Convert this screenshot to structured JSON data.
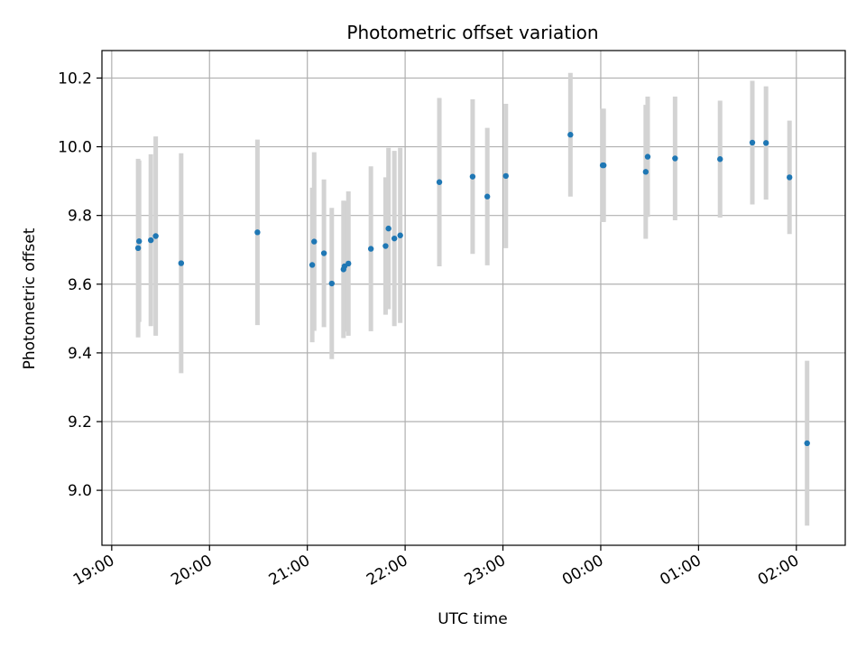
{
  "chart_data": {
    "type": "scatter",
    "title": "Photometric offset variation",
    "xlabel": "UTC time",
    "ylabel": "Photometric offset",
    "x_start_label": "19:00",
    "xlim_hours": [
      -0.1,
      7.5
    ],
    "ylim": [
      8.84,
      10.28
    ],
    "x_ticks": [
      {
        "hour": 0,
        "label": "19:00"
      },
      {
        "hour": 1,
        "label": "20:00"
      },
      {
        "hour": 2,
        "label": "21:00"
      },
      {
        "hour": 3,
        "label": "22:00"
      },
      {
        "hour": 4,
        "label": "23:00"
      },
      {
        "hour": 5,
        "label": "00:00"
      },
      {
        "hour": 6,
        "label": "01:00"
      },
      {
        "hour": 7,
        "label": "02:00"
      }
    ],
    "y_ticks": [
      {
        "value": 9.0,
        "label": "9.0"
      },
      {
        "value": 9.2,
        "label": "9.2"
      },
      {
        "value": 9.4,
        "label": "9.4"
      },
      {
        "value": 9.6,
        "label": "9.6"
      },
      {
        "value": 9.8,
        "label": "9.8"
      },
      {
        "value": 10.0,
        "label": "10.0"
      },
      {
        "value": 10.2,
        "label": "10.2"
      }
    ],
    "grid": true,
    "marker_color": "#1f77b4",
    "errorbar_color": "#d3d3d3",
    "points": [
      {
        "x": 0.27,
        "y": 9.705,
        "err": 0.26
      },
      {
        "x": 0.28,
        "y": 9.725,
        "err": 0.235
      },
      {
        "x": 0.4,
        "y": 9.728,
        "err": 0.25
      },
      {
        "x": 0.45,
        "y": 9.74,
        "err": 0.29
      },
      {
        "x": 0.71,
        "y": 9.661,
        "err": 0.32
      },
      {
        "x": 1.49,
        "y": 9.751,
        "err": 0.27
      },
      {
        "x": 2.05,
        "y": 9.656,
        "err": 0.225
      },
      {
        "x": 2.07,
        "y": 9.724,
        "err": 0.26
      },
      {
        "x": 2.17,
        "y": 9.69,
        "err": 0.215
      },
      {
        "x": 2.25,
        "y": 9.602,
        "err": 0.22
      },
      {
        "x": 2.37,
        "y": 9.643,
        "err": 0.2
      },
      {
        "x": 2.38,
        "y": 9.652,
        "err": 0.19
      },
      {
        "x": 2.42,
        "y": 9.66,
        "err": 0.21
      },
      {
        "x": 2.65,
        "y": 9.703,
        "err": 0.24
      },
      {
        "x": 2.8,
        "y": 9.711,
        "err": 0.2
      },
      {
        "x": 2.83,
        "y": 9.762,
        "err": 0.235
      },
      {
        "x": 2.89,
        "y": 9.733,
        "err": 0.255
      },
      {
        "x": 2.95,
        "y": 9.742,
        "err": 0.255
      },
      {
        "x": 3.35,
        "y": 9.897,
        "err": 0.245
      },
      {
        "x": 3.69,
        "y": 9.913,
        "err": 0.225
      },
      {
        "x": 3.84,
        "y": 9.855,
        "err": 0.2
      },
      {
        "x": 4.03,
        "y": 9.915,
        "err": 0.21
      },
      {
        "x": 4.69,
        "y": 10.035,
        "err": 0.18
      },
      {
        "x": 5.02,
        "y": 9.946,
        "err": 0.165
      },
      {
        "x": 5.03,
        "y": 9.946,
        "err": 0.165
      },
      {
        "x": 5.46,
        "y": 9.927,
        "err": 0.195
      },
      {
        "x": 5.48,
        "y": 9.971,
        "err": 0.175
      },
      {
        "x": 5.76,
        "y": 9.966,
        "err": 0.18
      },
      {
        "x": 6.22,
        "y": 9.964,
        "err": 0.17
      },
      {
        "x": 6.55,
        "y": 10.012,
        "err": 0.18
      },
      {
        "x": 6.69,
        "y": 10.011,
        "err": 0.165
      },
      {
        "x": 6.93,
        "y": 9.911,
        "err": 0.165
      },
      {
        "x": 7.11,
        "y": 9.137,
        "err": 0.24
      }
    ]
  }
}
